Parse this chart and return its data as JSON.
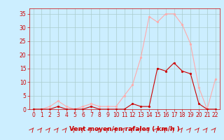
{
  "x": [
    0,
    1,
    2,
    3,
    4,
    5,
    6,
    7,
    8,
    9,
    10,
    11,
    12,
    13,
    14,
    15,
    16,
    17,
    18,
    19,
    20,
    21,
    22
  ],
  "y_rafales": [
    0,
    0,
    1,
    3,
    1,
    0,
    1,
    2,
    1,
    1,
    1,
    5,
    9,
    19,
    34,
    32,
    35,
    35,
    31,
    24,
    8,
    0,
    11
  ],
  "y_moyen": [
    0,
    0,
    0,
    1,
    0,
    0,
    0,
    1,
    0,
    0,
    0,
    0,
    2,
    1,
    1,
    15,
    14,
    17,
    14,
    13,
    2,
    0,
    0
  ],
  "color_rafales": "#ffaaaa",
  "color_moyen": "#cc0000",
  "bg_color": "#cceeff",
  "grid_color": "#aacccc",
  "xlabel": "Vent moyen/en rafales ( km/h )",
  "xlim": [
    -0.5,
    22.5
  ],
  "ylim": [
    0,
    37
  ],
  "yticks": [
    0,
    5,
    10,
    15,
    20,
    25,
    30,
    35
  ],
  "xticks": [
    0,
    1,
    2,
    3,
    4,
    5,
    6,
    7,
    8,
    9,
    10,
    11,
    12,
    13,
    14,
    15,
    16,
    17,
    18,
    19,
    20,
    21,
    22
  ],
  "tick_fontsize": 5.5,
  "label_fontsize": 6.5,
  "marker_size": 2,
  "line_width": 0.8,
  "tick_color": "#cc0000",
  "label_color": "#cc0000"
}
